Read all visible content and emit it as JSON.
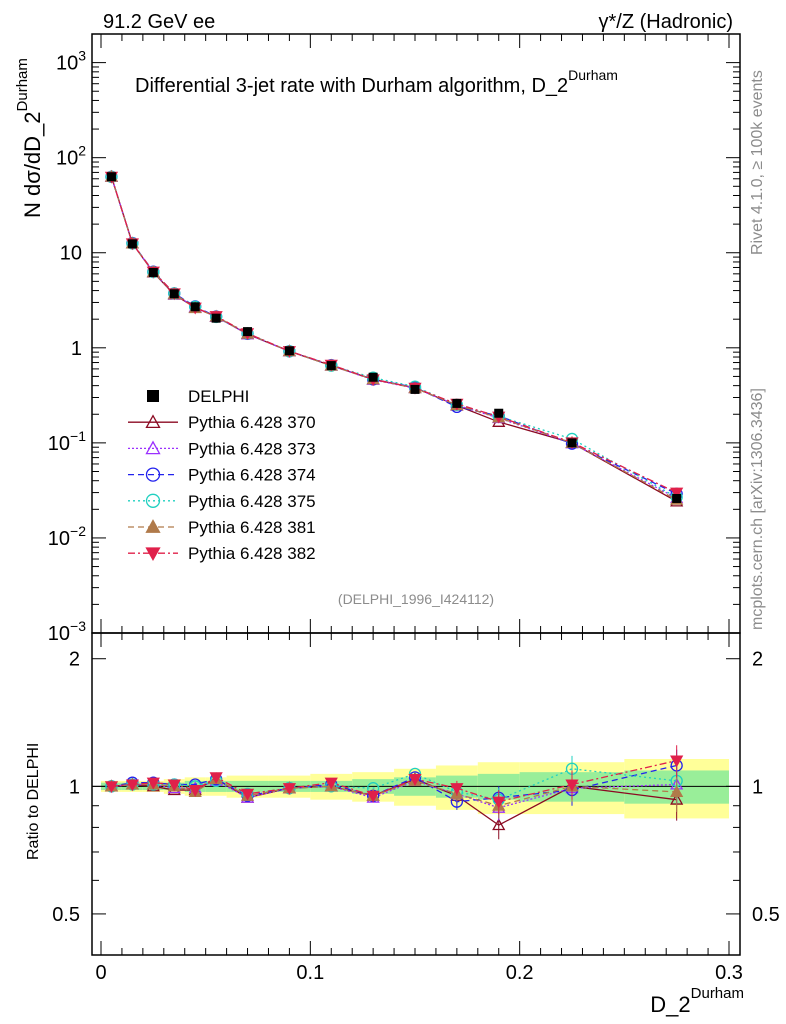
{
  "header": {
    "left": "91.2 GeV ee",
    "right_prefix": "γ*/Z (Hadronic)"
  },
  "title": {
    "main": "Differential 3-jet rate with Durham algorithm, D_2",
    "sup": "Durham"
  },
  "side_labels": {
    "rivet": "Rivet 4.1.0, ≥ 100k events",
    "mcplots": "mcplots.cern.ch [arXiv:1306.3436]"
  },
  "watermark": "(DELPHI_1996_I424112)",
  "axes": {
    "top_ylabel_prefix": "N  dσ/dD_2",
    "top_ylabel_sup": "Durham",
    "ratio_ylabel": "Ratio to DELPHI",
    "xlabel_main": "D_2",
    "xlabel_sup": "Durham",
    "x_ticks": [
      "0",
      "0.1",
      "0.2",
      "0.3"
    ],
    "top_y_ticks": [
      {
        "base": "10",
        "exp": "3"
      },
      {
        "base": "10",
        "exp": "2"
      },
      {
        "base": "10",
        "exp": ""
      },
      {
        "base": "1",
        "exp": ""
      },
      {
        "base": "10",
        "exp": "−1"
      },
      {
        "base": "10",
        "exp": "−2"
      },
      {
        "base": "10",
        "exp": "−3"
      }
    ],
    "ratio_y_ticks": [
      "2",
      "1",
      "0.5"
    ]
  },
  "legend": [
    {
      "label": "DELPHI",
      "color": "#000000"
    },
    {
      "label": "Pythia 6.428 370",
      "color": "#8b0a22"
    },
    {
      "label": "Pythia 6.428 373",
      "color": "#9b30ff"
    },
    {
      "label": "Pythia 6.428 374",
      "color": "#2222ee"
    },
    {
      "label": "Pythia 6.428 375",
      "color": "#20d0c0"
    },
    {
      "label": "Pythia 6.428 381",
      "color": "#b07a4a"
    },
    {
      "label": "Pythia 6.428 382",
      "color": "#e0204a"
    }
  ],
  "chart_data": {
    "type": "scatter",
    "xlim": [
      0,
      0.3
    ],
    "ylim_top": [
      0.001,
      2000
    ],
    "ylim_ratio": [
      0.4,
      2.3
    ],
    "bin_edges": [
      0,
      0.01,
      0.02,
      0.03,
      0.04,
      0.05,
      0.06,
      0.08,
      0.1,
      0.12,
      0.14,
      0.16,
      0.18,
      0.2,
      0.25,
      0.3
    ],
    "x": [
      0.005,
      0.015,
      0.025,
      0.035,
      0.045,
      0.055,
      0.07,
      0.09,
      0.11,
      0.13,
      0.15,
      0.17,
      0.19,
      0.225,
      0.275
    ],
    "data": {
      "name": "DELPHI",
      "y": [
        63.0,
        12.4,
        6.2,
        3.7,
        2.7,
        2.05,
        1.48,
        0.93,
        0.65,
        0.49,
        0.365,
        0.26,
        0.205,
        0.1,
        0.026
      ],
      "band_inner": [
        0.02,
        0.02,
        0.02,
        0.02,
        0.03,
        0.03,
        0.03,
        0.03,
        0.03,
        0.04,
        0.05,
        0.06,
        0.07,
        0.08,
        0.09
      ],
      "band_outer": [
        0.03,
        0.03,
        0.03,
        0.04,
        0.05,
        0.05,
        0.06,
        0.06,
        0.07,
        0.08,
        0.1,
        0.12,
        0.14,
        0.14,
        0.16
      ]
    },
    "series": [
      {
        "name": "Pythia 6.428 370",
        "marker": "triangle-open",
        "dash": "",
        "ratio": [
          1.0,
          1.01,
          1.0,
          0.98,
          0.98,
          1.04,
          0.94,
          0.99,
          1.0,
          0.95,
          1.04,
          0.95,
          0.81,
          1.0,
          0.93
        ]
      },
      {
        "name": "Pythia 6.428 373",
        "marker": "triangle-open",
        "dash": "2,2",
        "ratio": [
          1.0,
          1.01,
          1.01,
          0.99,
          0.99,
          1.03,
          0.94,
          0.99,
          1.0,
          0.94,
          1.03,
          0.96,
          0.89,
          0.99,
          1.01
        ]
      },
      {
        "name": "Pythia 6.428 374",
        "marker": "circle-open",
        "dash": "6,4",
        "ratio": [
          1.0,
          1.02,
          1.02,
          1.01,
          1.01,
          1.04,
          0.95,
          0.99,
          1.01,
          0.95,
          1.05,
          0.92,
          0.94,
          0.98,
          1.12
        ]
      },
      {
        "name": "Pythia 6.428 375",
        "marker": "circle-open",
        "dash": "2,3",
        "ratio": [
          1.0,
          1.01,
          1.01,
          1.01,
          1.0,
          1.03,
          0.96,
          0.99,
          1.0,
          0.99,
          1.07,
          0.97,
          0.93,
          1.1,
          1.03
        ]
      },
      {
        "name": "Pythia 6.428 381",
        "marker": "triangle-filled",
        "dash": "6,4",
        "ratio": [
          1.0,
          1.01,
          1.01,
          1.0,
          0.97,
          1.04,
          0.95,
          0.99,
          1.0,
          0.95,
          1.03,
          0.96,
          0.9,
          1.0,
          0.97
        ]
      },
      {
        "name": "Pythia 6.428 382",
        "marker": "triangle-down-filled",
        "dash": "7,3,2,3",
        "ratio": [
          1.0,
          1.01,
          1.02,
          1.01,
          0.98,
          1.05,
          0.96,
          0.99,
          1.02,
          0.95,
          1.04,
          0.99,
          0.92,
          1.01,
          1.15
        ]
      }
    ]
  }
}
